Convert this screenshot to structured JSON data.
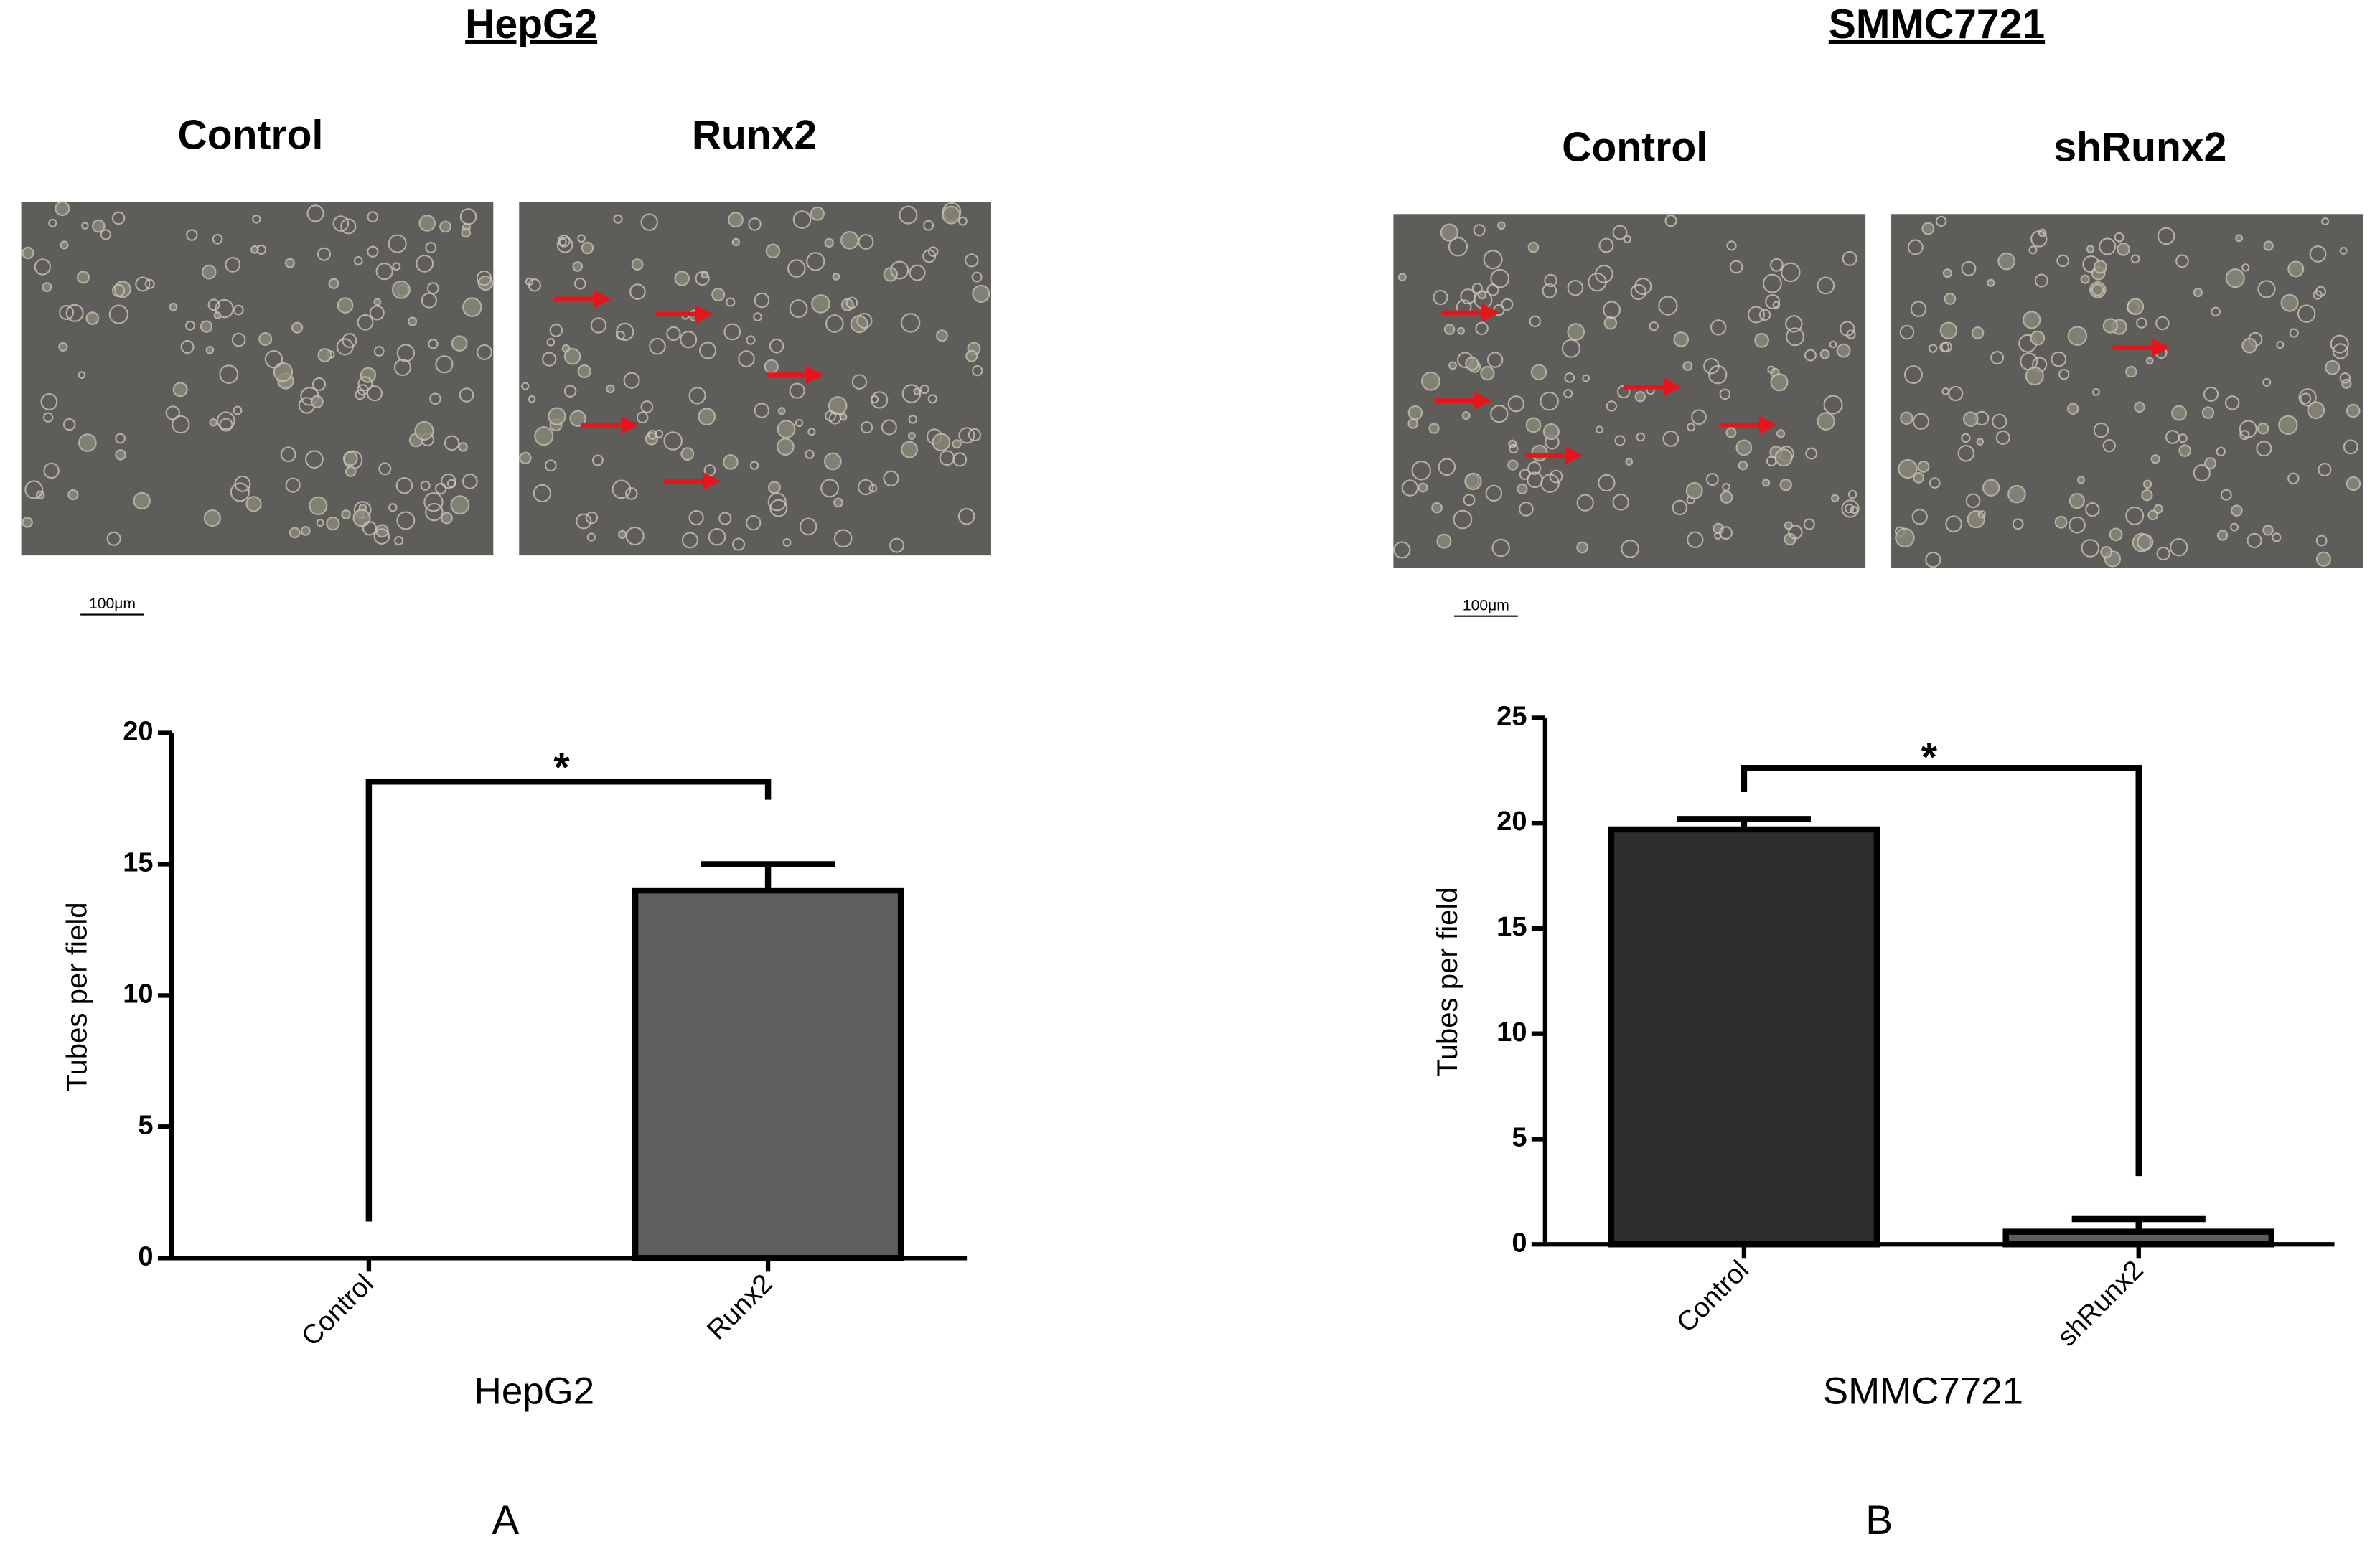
{
  "chart_data": [
    {
      "type": "bar",
      "panel_title": "HepG2",
      "image_labels": [
        "Control",
        "Runx2"
      ],
      "scale_bar": "100μm",
      "categories": [
        "Control",
        "Runx2"
      ],
      "values": [
        0,
        14.0
      ],
      "errors": [
        null,
        1.0
      ],
      "colors": [
        "#ffffff",
        "#5e5e5e"
      ],
      "ylim": [
        0,
        20
      ],
      "yticks": [
        0,
        5,
        10,
        15,
        20
      ],
      "ylabel": "Tubes per field",
      "xlabel": "HepG2",
      "annotation": "*",
      "panel_label": "A"
    },
    {
      "type": "bar",
      "panel_title": "SMMC7721",
      "image_labels": [
        "Control",
        "shRunx2"
      ],
      "scale_bar": "100μm",
      "categories": [
        "Control",
        "shRunx2"
      ],
      "values": [
        19.7,
        0.6
      ],
      "errors": [
        0.5,
        0.6
      ],
      "colors": [
        "#2d2d2d",
        "#5e5e5e"
      ],
      "ylim": [
        0,
        25
      ],
      "yticks": [
        0,
        5,
        10,
        15,
        20,
        25
      ],
      "ylabel": "Tubes per field",
      "xlabel": "SMMC7721",
      "annotation": "*",
      "panel_label": "B"
    }
  ]
}
